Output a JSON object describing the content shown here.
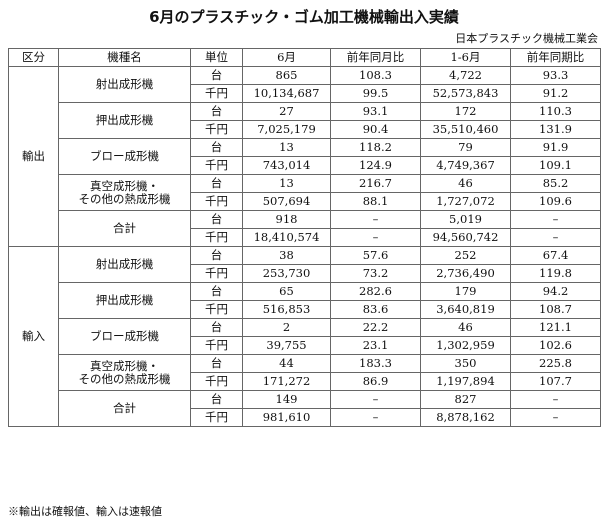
{
  "header": {
    "title": "6月のプラスチック・ゴム加工機械輸出入実績",
    "source": "日本プラスチック機械工業会"
  },
  "table": {
    "columns": [
      "区分",
      "機種名",
      "単位",
      "6月",
      "前年同月比",
      "1-6月",
      "前年同期比"
    ],
    "sections": [
      {
        "category": "輸出",
        "machines": [
          {
            "name_lines": [
              "射出成形機"
            ],
            "rows": [
              [
                "台",
                "865",
                "108.3",
                "4,722",
                "93.3"
              ],
              [
                "千円",
                "10,134,687",
                "99.5",
                "52,573,843",
                "91.2"
              ]
            ]
          },
          {
            "name_lines": [
              "押出成形機"
            ],
            "rows": [
              [
                "台",
                "27",
                "93.1",
                "172",
                "110.3"
              ],
              [
                "千円",
                "7,025,179",
                "90.4",
                "35,510,460",
                "131.9"
              ]
            ]
          },
          {
            "name_lines": [
              "ブロー成形機"
            ],
            "rows": [
              [
                "台",
                "13",
                "118.2",
                "79",
                "91.9"
              ],
              [
                "千円",
                "743,014",
                "124.9",
                "4,749,367",
                "109.1"
              ]
            ]
          },
          {
            "name_lines": [
              "真空成形機・",
              "その他の熱成形機"
            ],
            "rows": [
              [
                "台",
                "13",
                "216.7",
                "46",
                "85.2"
              ],
              [
                "千円",
                "507,694",
                "88.1",
                "1,727,072",
                "109.6"
              ]
            ]
          },
          {
            "name_lines": [
              "合計"
            ],
            "rows": [
              [
                "台",
                "918",
                "–",
                "5,019",
                "–"
              ],
              [
                "千円",
                "18,410,574",
                "–",
                "94,560,742",
                "–"
              ]
            ]
          }
        ]
      },
      {
        "category": "輸入",
        "machines": [
          {
            "name_lines": [
              "射出成形機"
            ],
            "rows": [
              [
                "台",
                "38",
                "57.6",
                "252",
                "67.4"
              ],
              [
                "千円",
                "253,730",
                "73.2",
                "2,736,490",
                "119.8"
              ]
            ]
          },
          {
            "name_lines": [
              "押出成形機"
            ],
            "rows": [
              [
                "台",
                "65",
                "282.6",
                "179",
                "94.2"
              ],
              [
                "千円",
                "516,853",
                "83.6",
                "3,640,819",
                "108.7"
              ]
            ]
          },
          {
            "name_lines": [
              "ブロー成形機"
            ],
            "rows": [
              [
                "台",
                "2",
                "22.2",
                "46",
                "121.1"
              ],
              [
                "千円",
                "39,755",
                "23.1",
                "1,302,959",
                "102.6"
              ]
            ]
          },
          {
            "name_lines": [
              "真空成形機・",
              "その他の熱成形機"
            ],
            "rows": [
              [
                "台",
                "44",
                "183.3",
                "350",
                "225.8"
              ],
              [
                "千円",
                "171,272",
                "86.9",
                "1,197,894",
                "107.7"
              ]
            ]
          },
          {
            "name_lines": [
              "合計"
            ],
            "rows": [
              [
                "台",
                "149",
                "–",
                "827",
                "–"
              ],
              [
                "千円",
                "981,610",
                "–",
                "8,878,162",
                "–"
              ]
            ]
          }
        ]
      }
    ]
  },
  "footnote": "※輸出は確報値、輸入は速報値"
}
